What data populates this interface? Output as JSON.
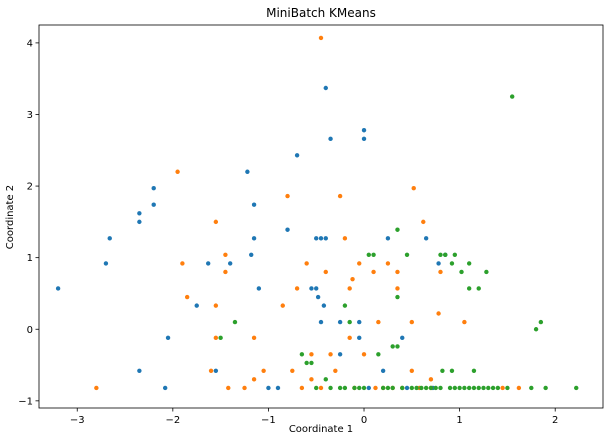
{
  "chart_data": {
    "type": "scatter",
    "title": "MiniBatch KMeans",
    "xlabel": "Coordinate 1",
    "ylabel": "Coordinate 2",
    "xlim": [
      -3.4,
      2.5
    ],
    "ylim": [
      -1.1,
      4.25
    ],
    "xticks": [
      -3,
      -2,
      -1,
      0,
      1,
      2
    ],
    "yticks": [
      -1,
      0,
      1,
      2,
      3,
      4
    ],
    "grid": false,
    "legend": "none",
    "series": [
      {
        "color": "#1f77b4",
        "points": [
          [
            -3.2,
            0.57
          ],
          [
            -2.7,
            0.92
          ],
          [
            -2.66,
            1.27
          ],
          [
            -2.35,
            1.62
          ],
          [
            -2.35,
            1.5
          ],
          [
            -2.2,
            1.97
          ],
          [
            -2.2,
            1.74
          ],
          [
            -2.35,
            -0.58
          ],
          [
            -2.05,
            -0.12
          ],
          [
            -2.08,
            -0.82
          ],
          [
            -1.63,
            0.92
          ],
          [
            -1.75,
            0.33
          ],
          [
            -1.55,
            -0.58
          ],
          [
            -1.4,
            0.92
          ],
          [
            -1.22,
            2.2
          ],
          [
            -1.15,
            1.74
          ],
          [
            -1.15,
            1.27
          ],
          [
            -1.18,
            1.04
          ],
          [
            -1.1,
            0.57
          ],
          [
            -1.0,
            -0.82
          ],
          [
            -0.9,
            -0.82
          ],
          [
            -0.8,
            1.39
          ],
          [
            -0.7,
            2.43
          ],
          [
            -0.5,
            1.27
          ],
          [
            -0.45,
            1.27
          ],
          [
            -0.4,
            1.27
          ],
          [
            -0.5,
            0.57
          ],
          [
            -0.55,
            0.57
          ],
          [
            -0.48,
            0.45
          ],
          [
            -0.45,
            0.1
          ],
          [
            -0.42,
            0.33
          ],
          [
            -0.4,
            3.37
          ],
          [
            -0.35,
            2.66
          ],
          [
            -0.25,
            0.1
          ],
          [
            -0.25,
            -0.35
          ],
          [
            -0.05,
            0.1
          ],
          [
            0.0,
            2.78
          ],
          [
            0.0,
            2.66
          ],
          [
            -0.05,
            -0.12
          ],
          [
            0.05,
            -0.82
          ],
          [
            0.2,
            -0.58
          ],
          [
            0.25,
            1.27
          ],
          [
            0.4,
            -0.12
          ],
          [
            0.45,
            -0.82
          ],
          [
            0.65,
            1.27
          ],
          [
            0.72,
            -0.82
          ],
          [
            0.78,
            0.92
          ],
          [
            0.85,
            1.04
          ]
        ]
      },
      {
        "color": "#ff7f0e",
        "points": [
          [
            -2.8,
            -0.82
          ],
          [
            -1.95,
            2.2
          ],
          [
            -1.9,
            0.92
          ],
          [
            -1.85,
            0.45
          ],
          [
            -1.6,
            -0.58
          ],
          [
            -1.55,
            1.5
          ],
          [
            -1.55,
            0.33
          ],
          [
            -1.55,
            -0.12
          ],
          [
            -1.45,
            1.04
          ],
          [
            -1.45,
            0.8
          ],
          [
            -1.42,
            -0.82
          ],
          [
            -1.25,
            -0.82
          ],
          [
            -1.15,
            -0.7
          ],
          [
            -1.15,
            -0.12
          ],
          [
            -1.05,
            -0.58
          ],
          [
            -0.85,
            0.33
          ],
          [
            -0.8,
            1.86
          ],
          [
            -0.75,
            -0.58
          ],
          [
            -0.7,
            0.57
          ],
          [
            -0.65,
            -0.82
          ],
          [
            -0.6,
            0.92
          ],
          [
            -0.55,
            -0.35
          ],
          [
            -0.55,
            -0.7
          ],
          [
            -0.45,
            -0.82
          ],
          [
            -0.45,
            4.07
          ],
          [
            -0.4,
            0.8
          ],
          [
            -0.35,
            -0.35
          ],
          [
            -0.3,
            -0.58
          ],
          [
            -0.25,
            1.86
          ],
          [
            -0.2,
            1.27
          ],
          [
            -0.15,
            0.57
          ],
          [
            -0.15,
            -0.12
          ],
          [
            -0.12,
            0.7
          ],
          [
            -0.1,
            -0.82
          ],
          [
            -0.05,
            0.92
          ],
          [
            0.0,
            -0.35
          ],
          [
            0.1,
            0.8
          ],
          [
            0.12,
            -0.82
          ],
          [
            0.15,
            0.1
          ],
          [
            0.2,
            -0.82
          ],
          [
            0.25,
            0.92
          ],
          [
            0.3,
            -0.82
          ],
          [
            0.35,
            0.57
          ],
          [
            0.35,
            0.8
          ],
          [
            0.4,
            -0.82
          ],
          [
            0.5,
            -0.58
          ],
          [
            0.5,
            0.1
          ],
          [
            0.52,
            1.97
          ],
          [
            0.58,
            -0.82
          ],
          [
            0.62,
            1.5
          ],
          [
            0.7,
            -0.7
          ],
          [
            0.7,
            -0.82
          ],
          [
            0.78,
            0.22
          ],
          [
            0.8,
            0.8
          ],
          [
            1.05,
            0.1
          ],
          [
            1.45,
            -0.82
          ],
          [
            1.62,
            -0.82
          ]
        ]
      },
      {
        "color": "#2ca02c",
        "points": [
          [
            -1.5,
            -0.12
          ],
          [
            -1.35,
            0.1
          ],
          [
            -0.65,
            -0.35
          ],
          [
            -0.6,
            -0.47
          ],
          [
            -0.55,
            -0.47
          ],
          [
            -0.5,
            -0.82
          ],
          [
            -0.4,
            -0.7
          ],
          [
            -0.35,
            -0.82
          ],
          [
            -0.25,
            -0.82
          ],
          [
            -0.2,
            0.33
          ],
          [
            -0.2,
            -0.82
          ],
          [
            -0.15,
            0.1
          ],
          [
            -0.1,
            -0.82
          ],
          [
            -0.05,
            -0.82
          ],
          [
            0.0,
            -0.82
          ],
          [
            0.05,
            1.04
          ],
          [
            0.1,
            1.04
          ],
          [
            0.15,
            -0.35
          ],
          [
            0.2,
            -0.82
          ],
          [
            0.25,
            -0.82
          ],
          [
            0.3,
            -0.24
          ],
          [
            0.3,
            -0.82
          ],
          [
            0.35,
            1.39
          ],
          [
            0.35,
            0.45
          ],
          [
            0.35,
            -0.24
          ],
          [
            0.4,
            -0.82
          ],
          [
            0.45,
            1.04
          ],
          [
            0.5,
            -0.82
          ],
          [
            0.55,
            -0.82
          ],
          [
            0.6,
            -0.82
          ],
          [
            0.65,
            -0.82
          ],
          [
            0.7,
            -0.82
          ],
          [
            0.75,
            -0.82
          ],
          [
            0.8,
            -0.82
          ],
          [
            0.8,
            1.04
          ],
          [
            0.82,
            -0.58
          ],
          [
            0.9,
            -0.82
          ],
          [
            0.92,
            -0.58
          ],
          [
            0.92,
            0.92
          ],
          [
            0.95,
            -0.82
          ],
          [
            1.0,
            -0.82
          ],
          [
            1.02,
            0.8
          ],
          [
            1.05,
            -0.82
          ],
          [
            1.1,
            0.92
          ],
          [
            1.1,
            0.57
          ],
          [
            1.1,
            -0.82
          ],
          [
            1.15,
            -0.82
          ],
          [
            1.2,
            -0.82
          ],
          [
            1.25,
            -0.82
          ],
          [
            1.28,
            0.8
          ],
          [
            1.3,
            -0.82
          ],
          [
            1.35,
            -0.82
          ],
          [
            1.4,
            -0.82
          ],
          [
            1.5,
            -0.82
          ],
          [
            1.55,
            3.25
          ],
          [
            1.75,
            -0.82
          ],
          [
            1.8,
            0.0
          ],
          [
            1.85,
            0.1
          ],
          [
            1.9,
            -0.82
          ],
          [
            2.22,
            -0.82
          ],
          [
            0.85,
            1.04
          ],
          [
            1.2,
            0.57
          ],
          [
            1.15,
            -0.58
          ],
          [
            0.95,
            1.04
          ]
        ]
      }
    ]
  }
}
